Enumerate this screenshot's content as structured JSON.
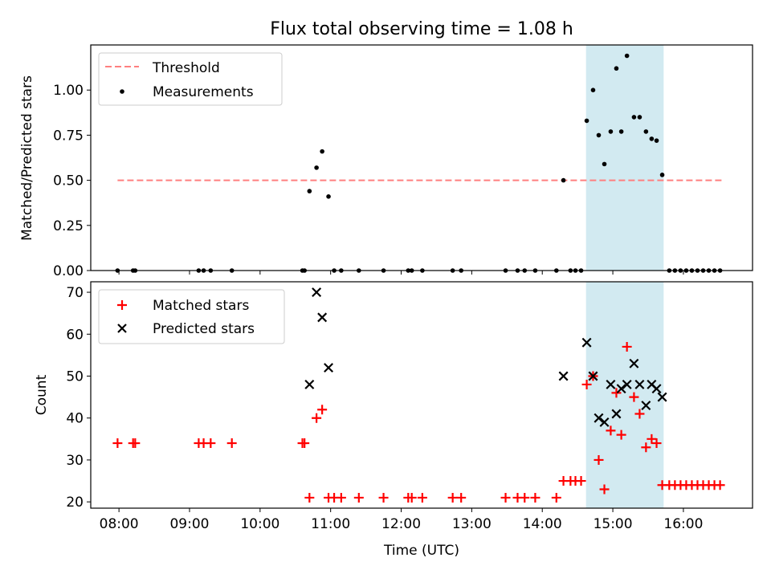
{
  "title": "Flux total observing time = 1.08 h",
  "colors": {
    "threshold": "#ff7f7f",
    "measurements": "#000000",
    "matched": "#ff0000",
    "predicted": "#000000",
    "highlight": "#add8e6"
  },
  "chart_data": [
    {
      "type": "scatter",
      "panel": "top",
      "xlabel": "",
      "ylabel": "Matched/Predicted stars",
      "x_unit": "hours UTC",
      "xlim": [
        7.6,
        16.98
      ],
      "ylim": [
        0,
        1.25
      ],
      "yticks": [
        0.0,
        0.25,
        0.5,
        0.75,
        1.0
      ],
      "ytick_labels": [
        "0.00",
        "0.25",
        "0.50",
        "0.75",
        "1.00"
      ],
      "grid": false,
      "legend_placement": "upper-left",
      "highlight_span": [
        14.62,
        15.72
      ],
      "threshold": {
        "name": "Threshold",
        "y": 0.5,
        "x_range": [
          7.98,
          16.55
        ],
        "style": "dashed"
      },
      "series": [
        {
          "name": "Measurements",
          "marker": "dot",
          "points": [
            [
              7.98,
              0
            ],
            [
              8.2,
              0
            ],
            [
              8.23,
              0
            ],
            [
              9.13,
              0
            ],
            [
              9.2,
              0
            ],
            [
              9.3,
              0
            ],
            [
              9.6,
              0
            ],
            [
              10.6,
              0
            ],
            [
              10.63,
              0
            ],
            [
              10.7,
              0.44
            ],
            [
              10.8,
              0.57
            ],
            [
              10.88,
              0.66
            ],
            [
              10.97,
              0.41
            ],
            [
              11.05,
              0
            ],
            [
              11.15,
              0
            ],
            [
              11.4,
              0
            ],
            [
              11.75,
              0
            ],
            [
              12.1,
              0
            ],
            [
              12.15,
              0
            ],
            [
              12.3,
              0
            ],
            [
              12.73,
              0
            ],
            [
              12.85,
              0
            ],
            [
              13.48,
              0
            ],
            [
              13.65,
              0
            ],
            [
              13.75,
              0
            ],
            [
              13.9,
              0
            ],
            [
              14.2,
              0
            ],
            [
              14.3,
              0.5
            ],
            [
              14.4,
              0
            ],
            [
              14.47,
              0
            ],
            [
              14.55,
              0
            ],
            [
              14.63,
              0.83
            ],
            [
              14.72,
              1.0
            ],
            [
              14.8,
              0.75
            ],
            [
              14.88,
              0.59
            ],
            [
              14.97,
              0.77
            ],
            [
              15.05,
              1.12
            ],
            [
              15.12,
              0.77
            ],
            [
              15.2,
              1.19
            ],
            [
              15.3,
              0.85
            ],
            [
              15.38,
              0.85
            ],
            [
              15.47,
              0.77
            ],
            [
              15.55,
              0.73
            ],
            [
              15.62,
              0.72
            ],
            [
              15.7,
              0.53
            ],
            [
              15.8,
              0
            ],
            [
              15.88,
              0
            ],
            [
              15.96,
              0
            ],
            [
              16.04,
              0
            ],
            [
              16.12,
              0
            ],
            [
              16.2,
              0
            ],
            [
              16.28,
              0
            ],
            [
              16.36,
              0
            ],
            [
              16.44,
              0
            ],
            [
              16.52,
              0
            ]
          ]
        }
      ]
    },
    {
      "type": "scatter",
      "panel": "bottom",
      "xlabel": "Time (UTC)",
      "ylabel": "Count",
      "x_unit": "hours UTC",
      "xlim": [
        7.6,
        16.98
      ],
      "ylim": [
        18.5,
        72.5
      ],
      "xticks": [
        8,
        9,
        10,
        11,
        12,
        13,
        14,
        15,
        16
      ],
      "xtick_labels": [
        "08:00",
        "09:00",
        "10:00",
        "11:00",
        "12:00",
        "13:00",
        "14:00",
        "15:00",
        "16:00"
      ],
      "yticks": [
        20,
        30,
        40,
        50,
        60,
        70
      ],
      "ytick_labels": [
        "20",
        "30",
        "40",
        "50",
        "60",
        "70"
      ],
      "grid": false,
      "legend_placement": "upper-left",
      "highlight_span": [
        14.62,
        15.72
      ],
      "series": [
        {
          "name": "Matched stars",
          "marker": "plus",
          "points": [
            [
              7.98,
              34
            ],
            [
              8.2,
              34
            ],
            [
              8.23,
              34
            ],
            [
              9.13,
              34
            ],
            [
              9.2,
              34
            ],
            [
              9.3,
              34
            ],
            [
              9.6,
              34
            ],
            [
              10.6,
              34
            ],
            [
              10.63,
              34
            ],
            [
              10.7,
              21
            ],
            [
              10.8,
              40
            ],
            [
              10.88,
              42
            ],
            [
              10.97,
              21
            ],
            [
              11.05,
              21
            ],
            [
              11.15,
              21
            ],
            [
              11.4,
              21
            ],
            [
              11.75,
              21
            ],
            [
              12.1,
              21
            ],
            [
              12.15,
              21
            ],
            [
              12.3,
              21
            ],
            [
              12.73,
              21
            ],
            [
              12.85,
              21
            ],
            [
              13.48,
              21
            ],
            [
              13.65,
              21
            ],
            [
              13.75,
              21
            ],
            [
              13.9,
              21
            ],
            [
              14.2,
              21
            ],
            [
              14.3,
              25
            ],
            [
              14.4,
              25
            ],
            [
              14.47,
              25
            ],
            [
              14.55,
              25
            ],
            [
              14.63,
              48
            ],
            [
              14.72,
              50
            ],
            [
              14.8,
              30
            ],
            [
              14.88,
              23
            ],
            [
              14.97,
              37
            ],
            [
              15.05,
              46
            ],
            [
              15.12,
              36
            ],
            [
              15.2,
              57
            ],
            [
              15.3,
              45
            ],
            [
              15.38,
              41
            ],
            [
              15.47,
              33
            ],
            [
              15.55,
              35
            ],
            [
              15.62,
              34
            ],
            [
              15.7,
              24
            ],
            [
              15.8,
              24
            ],
            [
              15.88,
              24
            ],
            [
              15.96,
              24
            ],
            [
              16.04,
              24
            ],
            [
              16.12,
              24
            ],
            [
              16.2,
              24
            ],
            [
              16.28,
              24
            ],
            [
              16.36,
              24
            ],
            [
              16.44,
              24
            ],
            [
              16.52,
              24
            ]
          ]
        },
        {
          "name": "Predicted stars",
          "marker": "x",
          "points": [
            [
              10.7,
              48
            ],
            [
              10.8,
              70
            ],
            [
              10.88,
              64
            ],
            [
              10.97,
              52
            ],
            [
              14.3,
              50
            ],
            [
              14.63,
              58
            ],
            [
              14.72,
              50
            ],
            [
              14.8,
              40
            ],
            [
              14.88,
              39
            ],
            [
              14.97,
              48
            ],
            [
              15.05,
              41
            ],
            [
              15.12,
              47
            ],
            [
              15.2,
              48
            ],
            [
              15.3,
              53
            ],
            [
              15.38,
              48
            ],
            [
              15.47,
              43
            ],
            [
              15.55,
              48
            ],
            [
              15.62,
              47
            ],
            [
              15.7,
              45
            ]
          ]
        }
      ]
    }
  ]
}
